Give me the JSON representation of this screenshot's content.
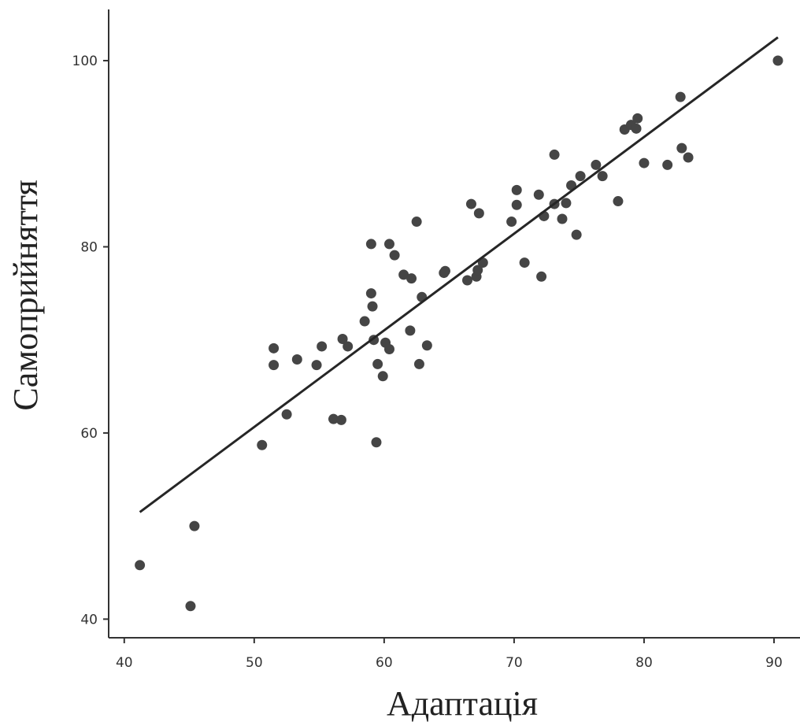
{
  "chart_data": {
    "type": "scatter",
    "title": "",
    "xlabel": "Адаптація",
    "ylabel": "Самоприйняття",
    "xlim": [
      38.8,
      92
    ],
    "ylim": [
      38,
      105.5
    ],
    "xticks": [
      "40",
      "50",
      "60",
      "70",
      "80",
      "90"
    ],
    "yticks": [
      "40",
      "60",
      "80",
      "100"
    ],
    "grid": false,
    "legend": "none",
    "point_color": "#454545",
    "line_color": "#262626",
    "points": [
      {
        "x": 41.2,
        "y": 45.8
      },
      {
        "x": 45.1,
        "y": 41.4
      },
      {
        "x": 45.4,
        "y": 50.0
      },
      {
        "x": 50.6,
        "y": 58.7
      },
      {
        "x": 51.5,
        "y": 67.3
      },
      {
        "x": 51.5,
        "y": 69.1
      },
      {
        "x": 52.5,
        "y": 62.0
      },
      {
        "x": 53.3,
        "y": 67.9
      },
      {
        "x": 54.8,
        "y": 67.3
      },
      {
        "x": 55.2,
        "y": 69.3
      },
      {
        "x": 56.1,
        "y": 61.5
      },
      {
        "x": 56.7,
        "y": 61.4
      },
      {
        "x": 56.8,
        "y": 70.1
      },
      {
        "x": 57.2,
        "y": 69.3
      },
      {
        "x": 58.5,
        "y": 72.0
      },
      {
        "x": 59.0,
        "y": 80.3
      },
      {
        "x": 59.0,
        "y": 75.0
      },
      {
        "x": 59.1,
        "y": 73.6
      },
      {
        "x": 59.2,
        "y": 70.0
      },
      {
        "x": 59.4,
        "y": 59.0
      },
      {
        "x": 59.5,
        "y": 67.4
      },
      {
        "x": 59.9,
        "y": 66.1
      },
      {
        "x": 60.1,
        "y": 69.7
      },
      {
        "x": 60.4,
        "y": 69.0
      },
      {
        "x": 60.4,
        "y": 80.3
      },
      {
        "x": 60.8,
        "y": 79.1
      },
      {
        "x": 61.5,
        "y": 77.0
      },
      {
        "x": 62.0,
        "y": 71.0
      },
      {
        "x": 62.1,
        "y": 76.6
      },
      {
        "x": 62.5,
        "y": 82.7
      },
      {
        "x": 62.7,
        "y": 67.4
      },
      {
        "x": 62.9,
        "y": 74.6
      },
      {
        "x": 63.3,
        "y": 69.4
      },
      {
        "x": 64.6,
        "y": 77.2
      },
      {
        "x": 64.7,
        "y": 77.4
      },
      {
        "x": 66.4,
        "y": 76.4
      },
      {
        "x": 66.7,
        "y": 84.6
      },
      {
        "x": 67.1,
        "y": 76.8
      },
      {
        "x": 67.2,
        "y": 77.5
      },
      {
        "x": 67.3,
        "y": 83.6
      },
      {
        "x": 67.6,
        "y": 78.3
      },
      {
        "x": 69.8,
        "y": 82.7
      },
      {
        "x": 70.2,
        "y": 86.1
      },
      {
        "x": 70.2,
        "y": 84.5
      },
      {
        "x": 70.8,
        "y": 78.3
      },
      {
        "x": 71.9,
        "y": 85.6
      },
      {
        "x": 72.1,
        "y": 76.8
      },
      {
        "x": 72.3,
        "y": 83.3
      },
      {
        "x": 73.1,
        "y": 89.9
      },
      {
        "x": 73.1,
        "y": 84.6
      },
      {
        "x": 73.7,
        "y": 83.0
      },
      {
        "x": 74.0,
        "y": 84.7
      },
      {
        "x": 74.4,
        "y": 86.6
      },
      {
        "x": 74.8,
        "y": 81.3
      },
      {
        "x": 75.1,
        "y": 87.6
      },
      {
        "x": 76.3,
        "y": 88.8
      },
      {
        "x": 76.8,
        "y": 87.6
      },
      {
        "x": 78.0,
        "y": 84.9
      },
      {
        "x": 78.5,
        "y": 92.6
      },
      {
        "x": 79.0,
        "y": 93.1
      },
      {
        "x": 79.4,
        "y": 92.7
      },
      {
        "x": 79.5,
        "y": 93.8
      },
      {
        "x": 80.0,
        "y": 89.0
      },
      {
        "x": 81.8,
        "y": 88.8
      },
      {
        "x": 82.8,
        "y": 96.1
      },
      {
        "x": 82.9,
        "y": 90.6
      },
      {
        "x": 83.4,
        "y": 89.6
      },
      {
        "x": 90.3,
        "y": 100.0
      }
    ],
    "fit_line": [
      {
        "x": 41.2,
        "y": 51.5
      },
      {
        "x": 90.3,
        "y": 102.5
      }
    ]
  }
}
